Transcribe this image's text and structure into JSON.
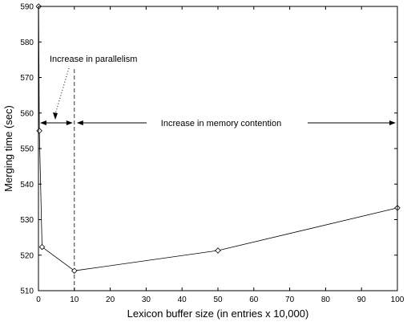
{
  "chart_data": {
    "type": "line",
    "title": "",
    "xlabel": "Lexicon buffer size (in entries x 10,000)",
    "ylabel": "Merging time (sec)",
    "xlim": [
      0,
      100
    ],
    "ylim": [
      510,
      590
    ],
    "xticks": [
      0,
      10,
      20,
      30,
      40,
      50,
      60,
      70,
      80,
      90,
      100
    ],
    "yticks": [
      510,
      520,
      530,
      540,
      550,
      560,
      570,
      580,
      590
    ],
    "grid": false,
    "legend": "none",
    "series": [
      {
        "marker": "diamond",
        "color": "#000000",
        "x": [
          0.05,
          0.25,
          1,
          10,
          50,
          100
        ],
        "y": [
          590,
          555,
          522.3,
          515.6,
          521.3,
          533.3
        ]
      }
    ],
    "annotations": {
      "parallelism": "Increase in parallelism",
      "memory": "Increase in memory contention",
      "divider_x": 10
    }
  }
}
